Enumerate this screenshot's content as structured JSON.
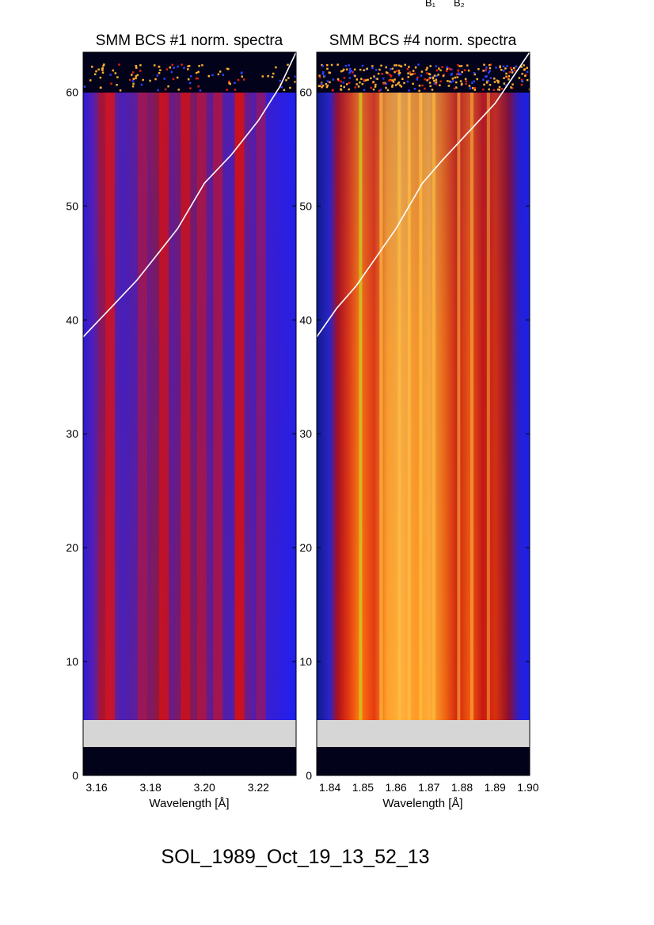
{
  "header_labels": [
    "B₁",
    "B₂"
  ],
  "event_label": "SOL_1989_Oct_19_13_52_13",
  "colors": {
    "background": "#ffffff",
    "bad_data_band": "#d6d6d6",
    "no_data": "#02021a",
    "overlay_curve": "#ffffff"
  },
  "chart_data": [
    {
      "type": "heatmap",
      "title": "SMM BCS #1 norm. spectra",
      "xlabel": "Wavelength [Å]",
      "ylabel": "",
      "xlim": [
        3.155,
        3.234
      ],
      "ylim": [
        0,
        63.5
      ],
      "xticks": [
        3.16,
        3.18,
        3.2,
        3.22
      ],
      "xtick_labels": [
        "3.16",
        "3.18",
        "3.20",
        "3.22"
      ],
      "yticks": [
        0,
        10,
        20,
        30,
        40,
        50,
        60
      ],
      "ytick_labels": [
        "0",
        "10",
        "20",
        "30",
        "40",
        "50",
        "60"
      ],
      "colormap": "blue-purple-red",
      "gap_rows": [
        [
          2.3,
          4.7
        ]
      ],
      "no_data_rows": [
        [
          0,
          2.3
        ],
        [
          60.2,
          63.5
        ]
      ],
      "noise_rows": [
        60.2,
        62.5
      ],
      "spectral_features": [
        {
          "wavelength": 3.165,
          "strength": 0.95
        },
        {
          "wavelength": 3.177,
          "strength": 0.35
        },
        {
          "wavelength": 3.185,
          "strength": 0.8
        },
        {
          "wavelength": 3.193,
          "strength": 0.75
        },
        {
          "wavelength": 3.199,
          "strength": 0.45
        },
        {
          "wavelength": 3.205,
          "strength": 0.55
        },
        {
          "wavelength": 3.213,
          "strength": 0.9
        },
        {
          "wavelength": 3.221,
          "strength": 0.3
        }
      ],
      "overlay_curve": {
        "x": [
          3.155,
          3.165,
          3.175,
          3.185,
          3.19,
          3.195,
          3.2,
          3.21,
          3.22,
          3.228,
          3.234
        ],
        "y": [
          38.5,
          41.0,
          43.5,
          46.5,
          48.0,
          50.0,
          52.0,
          54.5,
          57.5,
          60.5,
          63.5
        ]
      }
    },
    {
      "type": "heatmap",
      "title": "SMM BCS #4 norm. spectra",
      "xlabel": "Wavelength [Å]",
      "ylabel": "",
      "xlim": [
        1.836,
        1.9005
      ],
      "ylim": [
        0,
        63.5
      ],
      "xticks": [
        1.84,
        1.85,
        1.86,
        1.87,
        1.88,
        1.89,
        1.9
      ],
      "xtick_labels": [
        "1.84",
        "1.85",
        "1.86",
        "1.87",
        "1.88",
        "1.89",
        "1.90"
      ],
      "yticks": [
        0,
        10,
        20,
        30,
        40,
        50,
        60
      ],
      "ytick_labels": [
        "0",
        "10",
        "20",
        "30",
        "40",
        "50",
        "60"
      ],
      "colormap": "blue-red-orange-yellow",
      "gap_rows": [
        [
          2.3,
          4.7
        ]
      ],
      "no_data_rows": [
        [
          0,
          2.3
        ],
        [
          60.2,
          63.5
        ]
      ],
      "noise_rows": [
        60.2,
        62.5
      ],
      "spectral_features": [
        {
          "wavelength": 1.8493,
          "strength": 1.0
        },
        {
          "wavelength": 1.8555,
          "strength": 0.8
        },
        {
          "wavelength": 1.861,
          "strength": 0.85
        },
        {
          "wavelength": 1.864,
          "strength": 0.9
        },
        {
          "wavelength": 1.8675,
          "strength": 0.9
        },
        {
          "wavelength": 1.8715,
          "strength": 0.7
        },
        {
          "wavelength": 1.879,
          "strength": 0.6
        },
        {
          "wavelength": 1.883,
          "strength": 0.55
        },
        {
          "wavelength": 1.888,
          "strength": 0.45
        }
      ],
      "overlay_curve": {
        "x": [
          1.836,
          1.842,
          1.848,
          1.854,
          1.86,
          1.864,
          1.868,
          1.874,
          1.882,
          1.89,
          1.897,
          1.9005
        ],
        "y": [
          38.5,
          41.0,
          43.0,
          45.5,
          48.0,
          50.0,
          52.0,
          54.0,
          56.5,
          59.0,
          62.0,
          63.5
        ]
      }
    }
  ]
}
